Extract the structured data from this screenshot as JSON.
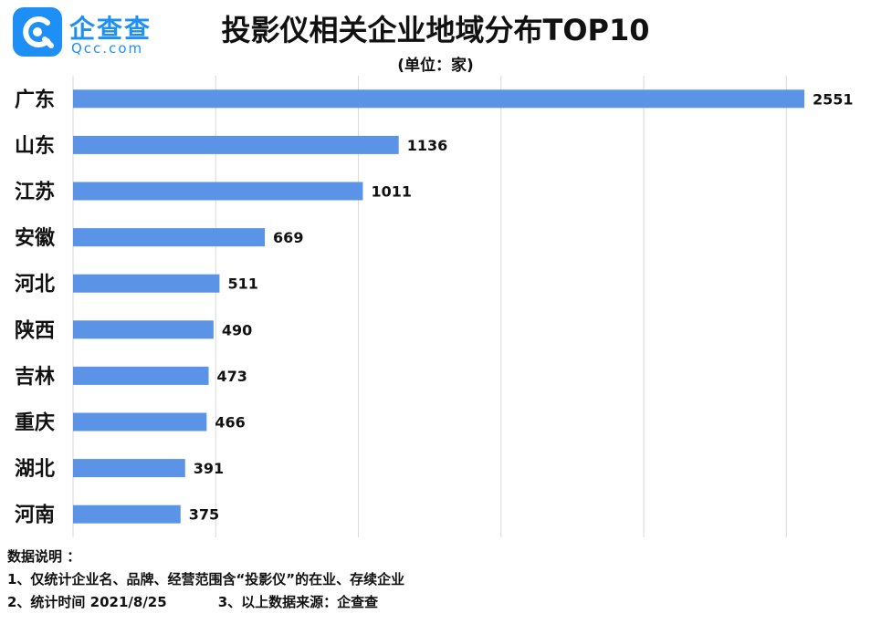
{
  "header": {
    "logo_cn": "企查查",
    "logo_en": "Qcc.com",
    "title": "投影仪相关企业地域分布TOP10",
    "subtitle": "(单位：家)"
  },
  "chart_data": {
    "type": "bar",
    "orientation": "horizontal",
    "categories": [
      "广东",
      "山东",
      "江苏",
      "安徽",
      "河北",
      "陕西",
      "吉林",
      "重庆",
      "湖北",
      "河南"
    ],
    "values": [
      2551,
      1136,
      1011,
      669,
      511,
      490,
      473,
      466,
      391,
      375
    ],
    "title": "投影仪相关企业地域分布TOP10",
    "xlim": [
      0,
      2600
    ],
    "grid": "vertical",
    "bar_color": "#5b93e6"
  },
  "footnotes": {
    "heading": "数据说明 ：",
    "line1": "1、仅统计企业名、品牌、经营范围含“投影仪”的在业、存续企业",
    "line2a": "2、统计时间 2021/8/25",
    "line2b": "3、以上数据来源：企查查"
  }
}
